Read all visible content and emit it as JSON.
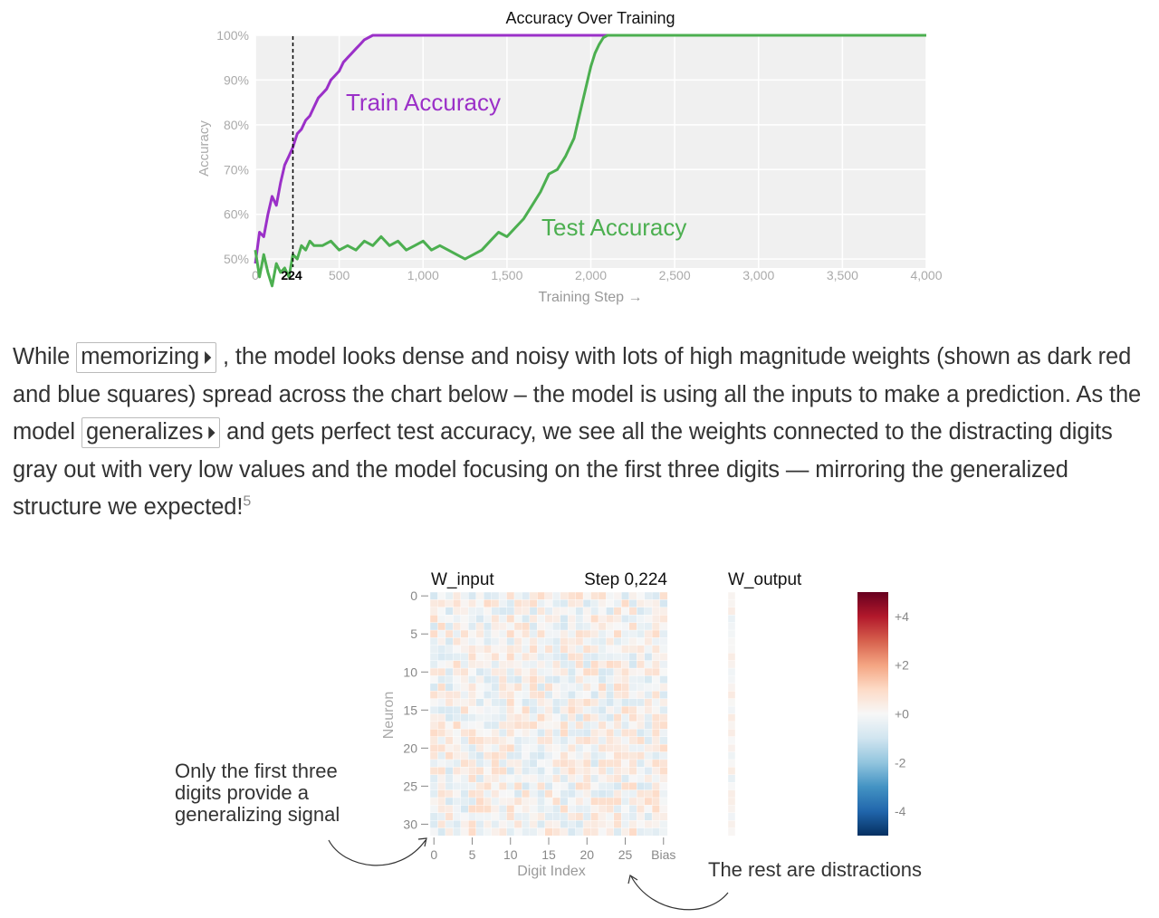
{
  "chart_data": [
    {
      "type": "line",
      "title": "Accuracy Over Training",
      "xlabel": "Training Step →",
      "ylabel": "Accuracy",
      "xlim": [
        0,
        4000
      ],
      "ylim": [
        48,
        100
      ],
      "xticks": [
        "0",
        "500",
        "1,000",
        "1,500",
        "2,000",
        "2,500",
        "3,000",
        "3,500",
        "4,000"
      ],
      "yticks": [
        "50%",
        "60%",
        "70%",
        "80%",
        "90%",
        "100%"
      ],
      "grid": true,
      "marker": {
        "step": 224,
        "label": "224"
      },
      "series": [
        {
          "name": "Train Accuracy",
          "color": "#9b30c8",
          "x": [
            0,
            25,
            50,
            75,
            100,
            125,
            150,
            175,
            200,
            224,
            250,
            275,
            300,
            325,
            350,
            375,
            400,
            425,
            450,
            475,
            500,
            525,
            550,
            575,
            600,
            625,
            650,
            675,
            700,
            725,
            750,
            1000,
            1500,
            2000,
            2075,
            2500,
            3000,
            3500,
            4000
          ],
          "values": [
            49,
            56,
            55,
            60,
            64,
            62,
            67,
            71,
            73,
            75,
            78,
            79,
            81,
            82,
            84,
            86,
            87,
            88,
            90,
            91,
            92,
            94,
            95,
            96,
            97,
            98,
            99,
            99.5,
            100,
            100,
            100,
            100,
            100,
            100,
            100,
            100,
            100,
            100,
            100
          ]
        },
        {
          "name": "Test Accuracy",
          "color": "#4caf50",
          "x": [
            0,
            25,
            50,
            75,
            100,
            125,
            150,
            175,
            200,
            224,
            250,
            275,
            300,
            325,
            350,
            400,
            450,
            500,
            550,
            600,
            650,
            700,
            750,
            800,
            850,
            900,
            950,
            1000,
            1050,
            1100,
            1150,
            1200,
            1250,
            1300,
            1350,
            1400,
            1450,
            1500,
            1550,
            1600,
            1650,
            1700,
            1750,
            1800,
            1850,
            1900,
            1950,
            2000,
            2025,
            2050,
            2075,
            2100,
            2500,
            3000,
            3500,
            4000
          ],
          "values": [
            52,
            46,
            51,
            47,
            44,
            49,
            47,
            48,
            46,
            51,
            50,
            53,
            52,
            54,
            53,
            53,
            54,
            52,
            53,
            52,
            54,
            53,
            55,
            53,
            54,
            52,
            53,
            54,
            52,
            53,
            52,
            51,
            50,
            51,
            52,
            54,
            56,
            55,
            57,
            59,
            62,
            65,
            69,
            70,
            73,
            77,
            85,
            93,
            96,
            98,
            99.5,
            100,
            100,
            100,
            100,
            100
          ]
        }
      ]
    },
    {
      "type": "heatmap",
      "title": "W_input",
      "step_label": "Step 0,224",
      "xlabel": "Digit Index",
      "ylabel": "Neuron",
      "rows": 32,
      "cols": 31,
      "xticks": [
        "0",
        "5",
        "10",
        "15",
        "20",
        "25",
        "Bias"
      ],
      "yticks": [
        "0",
        "5",
        "10",
        "15",
        "20",
        "25",
        "30"
      ],
      "value_range": [
        -0.9,
        1.0
      ],
      "output_title": "W_output",
      "colorbar": {
        "min": -5,
        "max": 5,
        "ticks": [
          "+4",
          "+2",
          "+0",
          "-2",
          "-4"
        ],
        "colors": [
          "#053061",
          "#2166ac",
          "#4393c3",
          "#92c5de",
          "#d1e5f0",
          "#f7f7f7",
          "#fddbc7",
          "#f4a582",
          "#d6604d",
          "#b2182b",
          "#67001f"
        ]
      }
    }
  ],
  "paragraph": {
    "p1": "While ",
    "chip1": "memorizing",
    "p2": " , the model looks dense and noisy with lots of high magnitude weights (shown as dark red and blue squares) spread across the chart below – the model is using all the inputs to make a prediction. As the model ",
    "chip2": "generalizes",
    "p3": " and gets perfect test accuracy, we see all the weights connected to the distracting digits gray out with very low values and the model focusing on the first three digits — mirroring the generalized structure we expected!",
    "footnote": "5",
    "chip_icon": "⏵"
  },
  "annotations": {
    "left": "Only the first three digits provide a generalizing signal",
    "right": "The rest are distractions"
  }
}
